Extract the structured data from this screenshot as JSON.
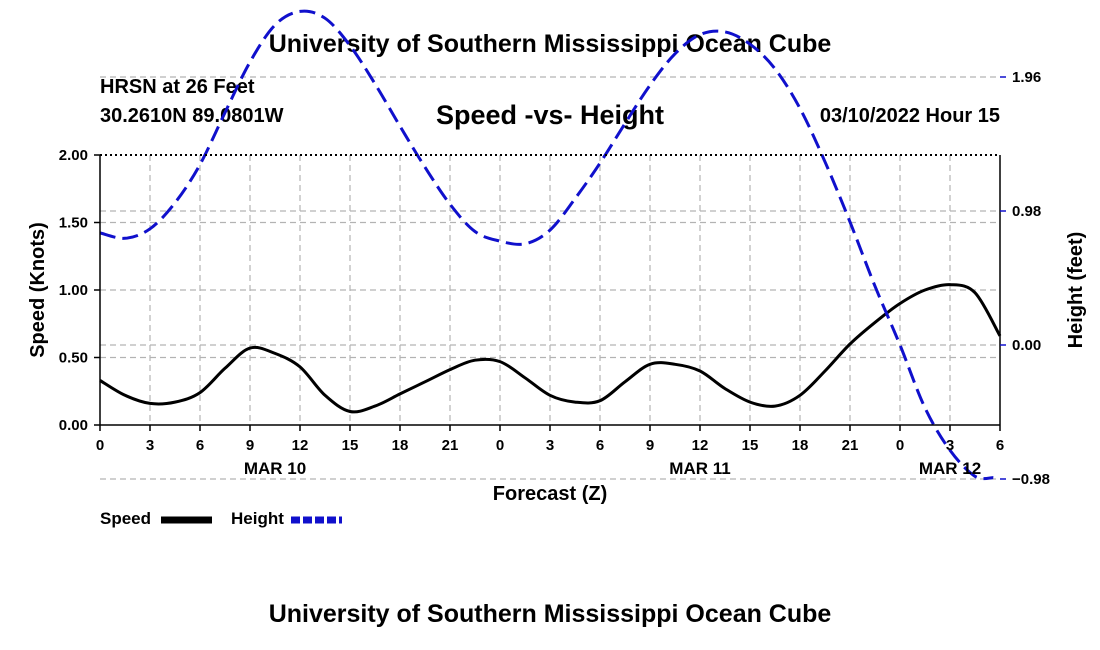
{
  "header": {
    "main_title": "University of Southern Mississippi Ocean Cube",
    "station": "HRSN at 26 Feet",
    "coordinates": "30.2610N  89.0801W",
    "subtitle": "Speed -vs- Height",
    "date": "03/10/2022 Hour 15"
  },
  "footer": {
    "title": "University of Southern Mississippi Ocean Cube"
  },
  "chart_data": {
    "type": "line",
    "x_hours": [
      0,
      3,
      6,
      9,
      12,
      15,
      18,
      21,
      24,
      27,
      30,
      33,
      36,
      39,
      42,
      45,
      48,
      51,
      54
    ],
    "x_tick_labels": [
      "0",
      "3",
      "6",
      "9",
      "12",
      "15",
      "18",
      "21",
      "0",
      "3",
      "6",
      "9",
      "12",
      "15",
      "18",
      "21",
      "0",
      "3",
      "6"
    ],
    "date_labels": [
      {
        "hour": 10.5,
        "label": "MAR 10"
      },
      {
        "hour": 36,
        "label": "MAR 11"
      },
      {
        "hour": 51,
        "label": "MAR 12"
      }
    ],
    "xlabel": "Forecast (Z)",
    "ylabel_left": "Speed (Knots)",
    "ylabel_right": "Height (feet)",
    "ylim_left": [
      0,
      2
    ],
    "left_ticks": [
      "0.00",
      "0.50",
      "1.00",
      "1.50",
      "2.00"
    ],
    "left_tick_values": [
      0,
      0.5,
      1.0,
      1.5,
      2.0
    ],
    "right_ticks": [
      "−0.98",
      "0.00",
      "0.98",
      "1.96"
    ],
    "right_tick_values": [
      -0.98,
      0.0,
      0.98,
      1.96
    ],
    "ylim_right": [
      -0.98,
      1.96
    ],
    "grid": true,
    "series": [
      {
        "name": "Speed",
        "axis": "left",
        "color": "#000000",
        "style": "solid",
        "x": [
          0,
          1.5,
          3,
          4.5,
          6,
          7.5,
          9,
          10.5,
          12,
          13.5,
          15,
          16.5,
          18,
          19.5,
          21,
          22.5,
          24,
          25.5,
          27,
          28.5,
          30,
          31.5,
          33,
          34.5,
          36,
          37.5,
          39,
          40.5,
          42,
          43.5,
          45,
          46.5,
          48,
          49.5,
          51,
          52.5,
          54
        ],
        "values": [
          0.33,
          0.22,
          0.16,
          0.17,
          0.24,
          0.42,
          0.57,
          0.53,
          0.43,
          0.22,
          0.1,
          0.14,
          0.23,
          0.32,
          0.41,
          0.48,
          0.47,
          0.35,
          0.22,
          0.17,
          0.18,
          0.32,
          0.45,
          0.45,
          0.4,
          0.27,
          0.17,
          0.14,
          0.22,
          0.4,
          0.6,
          0.76,
          0.9,
          1.0,
          1.04,
          0.98,
          0.66
        ]
      },
      {
        "name": "Height",
        "axis": "right",
        "color": "#1010cc",
        "style": "dashed",
        "x": [
          0,
          1.5,
          3,
          4.5,
          6,
          7.5,
          9,
          10.5,
          12,
          13.5,
          15,
          16.5,
          18,
          19.5,
          21,
          22.5,
          24,
          25.5,
          27,
          28.5,
          30,
          31.5,
          33,
          34.5,
          36,
          37.5,
          39,
          40.5,
          42,
          43.5,
          45,
          46.5,
          48,
          49.5,
          51,
          52.5,
          53.6
        ],
        "values": [
          0.82,
          0.78,
          0.85,
          1.04,
          1.32,
          1.7,
          2.07,
          2.34,
          2.44,
          2.39,
          2.19,
          1.91,
          1.6,
          1.3,
          1.03,
          0.83,
          0.76,
          0.74,
          0.84,
          1.07,
          1.33,
          1.62,
          1.9,
          2.13,
          2.27,
          2.29,
          2.2,
          2.02,
          1.73,
          1.34,
          0.9,
          0.43,
          0.0,
          -0.46,
          -0.77,
          -0.96,
          -0.97
        ]
      }
    ],
    "legend": [
      {
        "label": "Speed",
        "color": "#000000",
        "style": "solid"
      },
      {
        "label": "Height",
        "color": "#1010cc",
        "style": "dashed"
      }
    ]
  }
}
